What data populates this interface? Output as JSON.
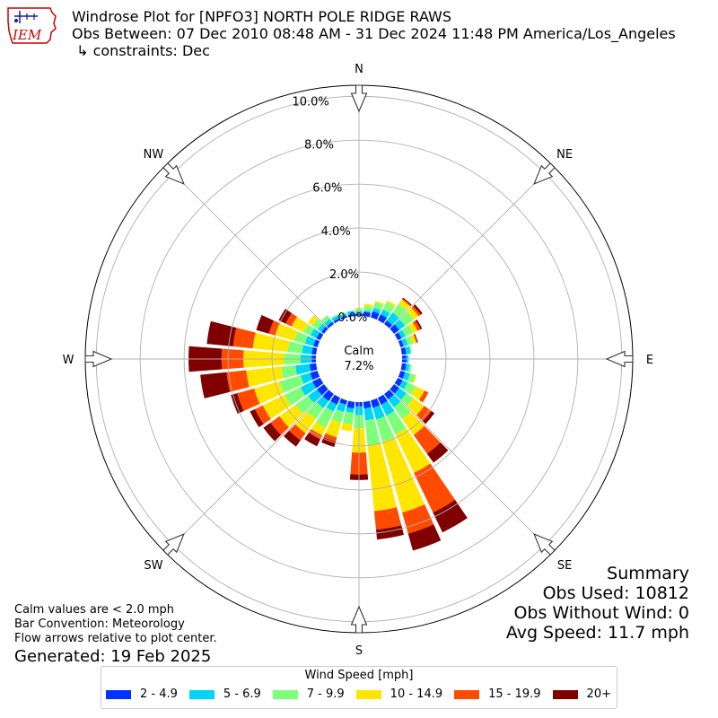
{
  "header": {
    "line1": "Windrose Plot for [NPFO3] NORTH POLE RIDGE RAWS",
    "line2": "Obs Between: 07 Dec 2010 08:48 AM - 31 Dec 2024 11:48 PM America/Los_Angeles",
    "line3": " ↳ constraints: Dec"
  },
  "logo": {
    "text": "IEM",
    "color": "#cc0000",
    "accent": "#1a1a99"
  },
  "footnotes": {
    "calm_note": "Calm values are < 2.0 mph",
    "bar_note": "Bar Convention: Meteorology",
    "arrow_note": "Flow arrows relative to plot center.",
    "generated": "Generated: 19 Feb 2025"
  },
  "summary": {
    "title": "Summary",
    "obs_used": "Obs Used: 10812",
    "obs_without_wind": "Obs Without Wind: 0",
    "avg_speed": "Avg Speed: 11.7 mph"
  },
  "legend": {
    "title": "Wind Speed [mph]",
    "items": [
      {
        "label": "2 - 4.9",
        "color": "#0033ff"
      },
      {
        "label": "5 - 6.9",
        "color": "#00d5f5"
      },
      {
        "label": "7 - 9.9",
        "color": "#7dff7a"
      },
      {
        "label": "10 - 14.9",
        "color": "#ffe600"
      },
      {
        "label": "15 - 19.9",
        "color": "#ff4a00"
      },
      {
        "label": "20+",
        "color": "#800000"
      }
    ]
  },
  "chart_data": {
    "type": "windrose",
    "directions": [
      "N",
      "NE",
      "E",
      "SE",
      "S",
      "SW",
      "W",
      "NW"
    ],
    "direction_bins_deg": [
      0,
      10,
      20,
      30,
      40,
      50,
      60,
      70,
      80,
      90,
      100,
      110,
      120,
      130,
      140,
      150,
      160,
      170,
      180,
      190,
      200,
      210,
      220,
      230,
      240,
      250,
      260,
      270,
      280,
      290,
      300,
      310,
      320,
      330,
      340,
      350
    ],
    "radial_ticks": [
      "0.0%",
      "2.0%",
      "4.0%",
      "6.0%",
      "8.0%",
      "10.0%"
    ],
    "radial_tick_values": [
      0,
      2,
      4,
      6,
      8,
      10
    ],
    "rmax": 10.5,
    "calm": {
      "label": "Calm",
      "value": "7.2%"
    },
    "speed_bins": [
      "2 - 4.9",
      "5 - 6.9",
      "7 - 9.9",
      "10 - 14.9",
      "15 - 19.9",
      "20+"
    ],
    "cumulative_percent": [
      [
        0.12,
        0.22,
        0.32,
        0.37,
        0.37,
        0.37
      ],
      [
        0.2,
        0.27,
        0.47,
        0.57,
        0.57,
        0.57
      ],
      [
        0.3,
        0.47,
        0.72,
        0.8,
        0.8,
        0.8
      ],
      [
        0.3,
        0.55,
        0.9,
        1.0,
        1.0,
        1.0
      ],
      [
        0.2,
        0.65,
        1.13,
        1.38,
        1.43,
        1.48
      ],
      [
        0.3,
        0.62,
        1.1,
        1.38,
        1.5,
        1.6
      ],
      [
        0.2,
        0.4,
        0.75,
        1.0,
        1.15,
        1.23
      ],
      [
        0.15,
        0.35,
        0.6,
        0.75,
        0.8,
        0.83
      ],
      [
        0.2,
        0.4,
        0.45,
        0.45,
        0.45,
        0.45
      ],
      [
        0.2,
        0.3,
        0.3,
        0.3,
        0.3,
        0.3
      ],
      [
        0.2,
        0.35,
        0.45,
        0.45,
        0.45,
        0.45
      ],
      [
        0.22,
        0.45,
        0.7,
        0.75,
        0.75,
        0.75
      ],
      [
        0.25,
        0.5,
        0.9,
        1.35,
        1.55,
        1.55
      ],
      [
        0.3,
        0.7,
        1.1,
        1.7,
        2.1,
        2.27
      ],
      [
        0.3,
        0.75,
        1.4,
        2.3,
        3.35,
        3.85
      ],
      [
        0.35,
        0.9,
        1.85,
        3.8,
        5.8,
        6.8
      ],
      [
        0.35,
        0.9,
        1.95,
        5.3,
        6.3,
        7.1
      ],
      [
        0.3,
        0.85,
        2.0,
        5.0,
        5.85,
        6.3
      ],
      [
        0.2,
        0.6,
        1.2,
        2.3,
        3.3,
        3.55
      ],
      [
        0.3,
        0.5,
        1.05,
        1.35,
        1.35,
        1.35
      ],
      [
        0.2,
        0.55,
        1.05,
        1.75,
        1.95,
        2.2
      ],
      [
        0.35,
        0.7,
        1.5,
        1.9,
        2.1,
        2.45
      ],
      [
        0.4,
        0.8,
        1.4,
        2.2,
        2.6,
        2.95
      ],
      [
        0.4,
        0.9,
        1.6,
        2.5,
        3.0,
        3.4
      ],
      [
        0.4,
        1.0,
        1.8,
        2.9,
        3.3,
        3.55
      ],
      [
        0.35,
        0.8,
        1.8,
        3.0,
        3.8,
        4.1
      ],
      [
        0.3,
        0.95,
        1.6,
        3.2,
        4.1,
        5.3
      ],
      [
        0.2,
        0.7,
        1.45,
        3.3,
        4.3,
        5.8
      ],
      [
        0.2,
        0.65,
        1.3,
        2.9,
        3.8,
        5.0
      ],
      [
        0.2,
        0.6,
        1.1,
        2.0,
        2.3,
        2.9
      ],
      [
        0.2,
        0.5,
        0.85,
        1.45,
        1.75,
        2.1
      ],
      [
        0.15,
        0.35,
        0.65,
        0.9,
        0.9,
        0.9
      ],
      [
        0.12,
        0.3,
        0.5,
        0.5,
        0.5,
        0.5
      ],
      [
        0.1,
        0.25,
        0.3,
        0.3,
        0.3,
        0.3
      ],
      [
        0.1,
        0.2,
        0.25,
        0.25,
        0.25,
        0.25
      ],
      [
        0.1,
        0.25,
        0.25,
        0.25,
        0.25,
        0.25
      ]
    ],
    "grid": true
  }
}
